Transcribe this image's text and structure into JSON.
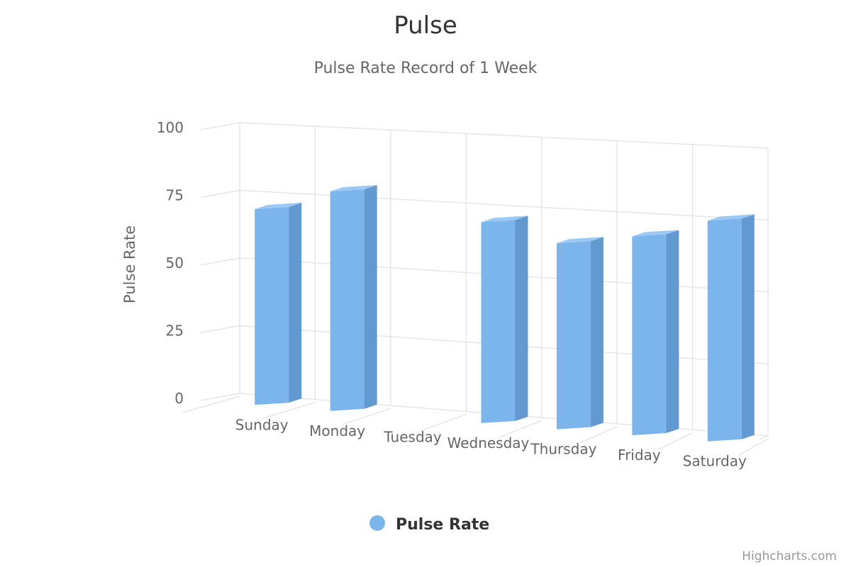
{
  "chart_data": {
    "type": "bar",
    "title": "Pulse",
    "subtitle": "Pulse Rate Record of 1 Week",
    "xlabel": "",
    "ylabel": "Pulse Rate",
    "categories": [
      "Sunday",
      "Monday",
      "Tuesday",
      "Wednesday",
      "Thursday",
      "Friday",
      "Saturday"
    ],
    "series": [
      {
        "name": "Pulse Rate",
        "values": [
          72,
          80,
          null,
          72,
          66,
          70,
          77
        ],
        "color": "#7cb5ec"
      }
    ],
    "ylim": [
      0,
      100
    ],
    "yticks": [
      0,
      25,
      50,
      75,
      100
    ],
    "grid": true,
    "legend": "bottom-center",
    "credits": "Highcharts.com"
  }
}
